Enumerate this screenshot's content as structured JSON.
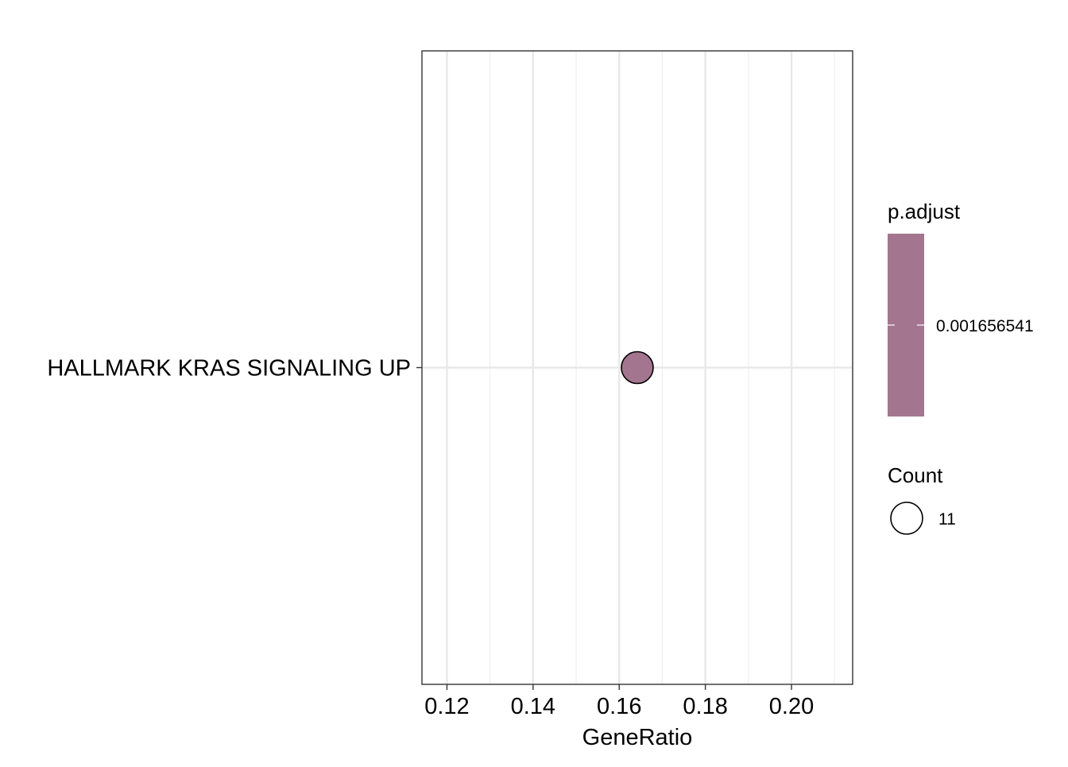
{
  "chart_data": {
    "type": "scatter",
    "title": "",
    "xlabel": "GeneRatio",
    "ylabel": "",
    "xlim": [
      0.1142,
      0.2142
    ],
    "x_ticks": [
      0.12,
      0.14,
      0.16,
      0.18,
      0.2
    ],
    "x_tick_labels": [
      "0.12",
      "0.14",
      "0.16",
      "0.18",
      "0.20"
    ],
    "x_minor_ticks": [
      0.13,
      0.15,
      0.17,
      0.19,
      0.21
    ],
    "categories": [
      "HALLMARK KRAS SIGNALING UP"
    ],
    "points": [
      {
        "category": "HALLMARK KRAS SIGNALING UP",
        "x": 0.1642,
        "count": 11,
        "p_adjust": 0.001656541,
        "color": "#a4758f"
      }
    ],
    "grid": true,
    "legend_position": "right",
    "legends": {
      "color": {
        "title": "p.adjust",
        "label": "0.001656541",
        "color": "#a4758f"
      },
      "size": {
        "title": "Count",
        "label": "11"
      }
    }
  }
}
